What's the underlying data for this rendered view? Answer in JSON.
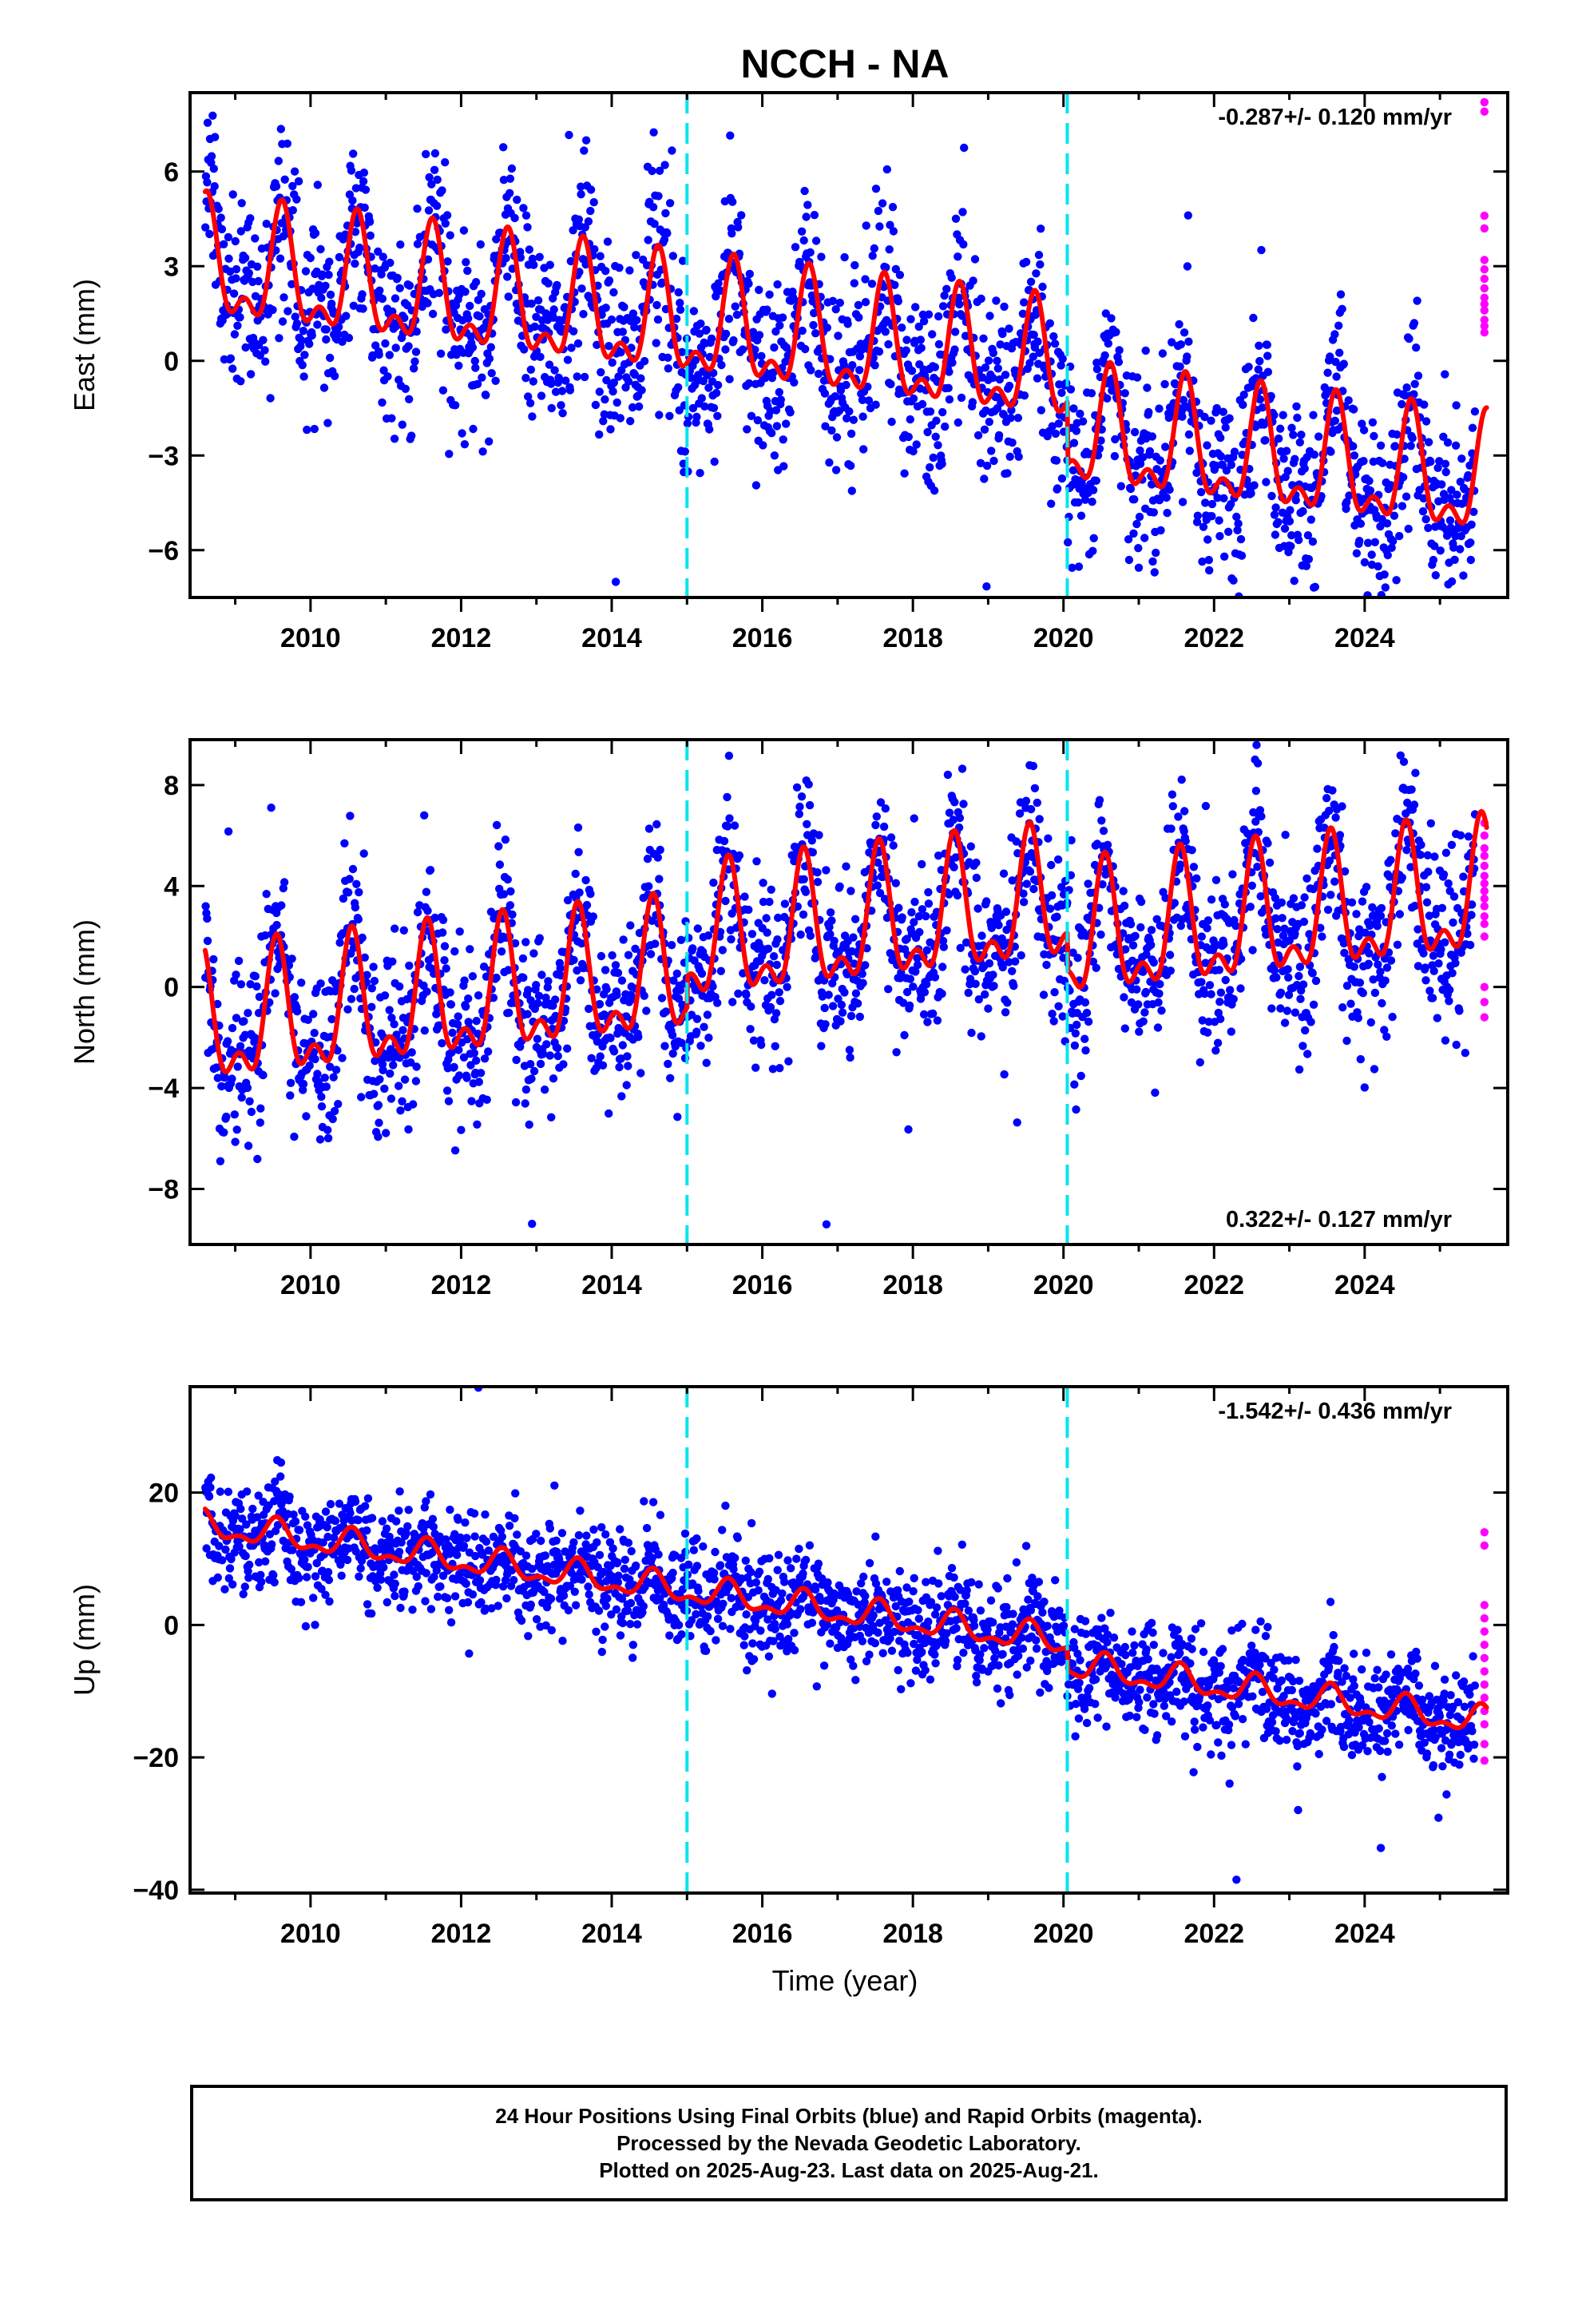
{
  "title": "NCCH - NA",
  "xlabel": "Time (year)",
  "colors": {
    "final_orbits": "#0000ff",
    "rapid_orbits": "#ff00ff",
    "model": "#ff0000",
    "offset_lines": "#00e5ee"
  },
  "footer": {
    "line1": "24 Hour Positions Using Final Orbits (blue) and Rapid Orbits (magenta).",
    "line2": "Processed by the Nevada Geodetic Laboratory.",
    "line3": "Plotted on 2025-Aug-23. Last data on 2025-Aug-21."
  },
  "chart_data": [
    {
      "type": "scatter",
      "ylabel": "East (mm)",
      "rate": "-0.287+/- 0.120 mm/yr",
      "rate_position": "top-right",
      "xlim": [
        2008.4,
        2025.9
      ],
      "ylim": [
        -7.5,
        8.5
      ],
      "yticks": [
        -6,
        -3,
        0,
        3,
        6
      ],
      "yticklabels": [
        "−6",
        "−3",
        "0",
        "3",
        "6"
      ],
      "xticks": [
        2010,
        2012,
        2014,
        2016,
        2018,
        2020,
        2022,
        2024
      ],
      "offset_lines": [
        2015.0,
        2020.05
      ],
      "model": {
        "start": 2008.6,
        "end": 2025.62,
        "mean_at_start": 2.9,
        "rate_mm_per_yr": -0.287,
        "seasonal_amplitude": 2.5,
        "peak_phase": 0.62,
        "offset_steps": [
          {
            "epoch": 2020.05,
            "step": -2.0
          }
        ]
      },
      "scatter_sigma": 1.5,
      "rapid_orbit_points": [
        8.2,
        7.9,
        4.6,
        4.2,
        3.2,
        2.9,
        2.6,
        2.3,
        2.0,
        1.8,
        1.6,
        1.3,
        1.1,
        0.9
      ]
    },
    {
      "type": "scatter",
      "ylabel": "North (mm)",
      "rate": "0.322+/- 0.127 mm/yr",
      "rate_position": "bottom-right",
      "xlim": [
        2008.4,
        2025.9
      ],
      "ylim": [
        -10.2,
        9.8
      ],
      "yticks": [
        -8,
        -4,
        0,
        4,
        8
      ],
      "yticklabels": [
        "−8",
        "−4",
        "0",
        "4",
        "8"
      ],
      "xticks": [
        2010,
        2012,
        2014,
        2016,
        2018,
        2020,
        2022,
        2024
      ],
      "offset_lines": [
        2015.0,
        2020.05
      ],
      "model": {
        "start": 2008.6,
        "end": 2025.62,
        "mean_at_start": -1.7,
        "rate_mm_per_yr": 0.322,
        "seasonal_amplitude": 3.5,
        "peak_phase": 0.55,
        "offset_steps": [
          {
            "epoch": 2015.0,
            "step": 1.2
          },
          {
            "epoch": 2020.05,
            "step": -1.5
          }
        ]
      },
      "scatter_sigma": 1.7,
      "rapid_orbit_points": [
        6.5,
        6.0,
        5.5,
        5.2,
        4.8,
        4.4,
        4.1,
        3.8,
        3.5,
        3.2,
        2.8,
        2.5,
        2.0,
        0.0,
        -0.6,
        -1.2
      ]
    },
    {
      "type": "scatter",
      "ylabel": "Up (mm)",
      "rate": "-1.542+/- 0.436 mm/yr",
      "rate_position": "top-right",
      "xlim": [
        2008.4,
        2025.9
      ],
      "ylim": [
        -40.5,
        36.0
      ],
      "yticks": [
        -40,
        -20,
        0,
        20
      ],
      "yticklabels": [
        "−40",
        "−20",
        "0",
        "20"
      ],
      "xticks": [
        2010,
        2012,
        2014,
        2016,
        2018,
        2020,
        2022,
        2024
      ],
      "offset_lines": [
        2015.0,
        2020.05
      ],
      "model": {
        "start": 2008.6,
        "end": 2025.62,
        "mean_at_start": 15.0,
        "rate_mm_per_yr": -1.542,
        "seasonal_amplitude": 2.8,
        "peak_phase": 0.55,
        "offset_steps": [
          {
            "epoch": 2020.05,
            "step": -3.5
          }
        ]
      },
      "scatter_sigma": 4.0,
      "rapid_orbit_points": [
        14.0,
        12.0,
        3.0,
        1.0,
        -1.0,
        -3.0,
        -5.0,
        -7.0,
        -9.0,
        -11.0,
        -13.0,
        -15.0,
        -18.0,
        -20.5
      ]
    }
  ]
}
